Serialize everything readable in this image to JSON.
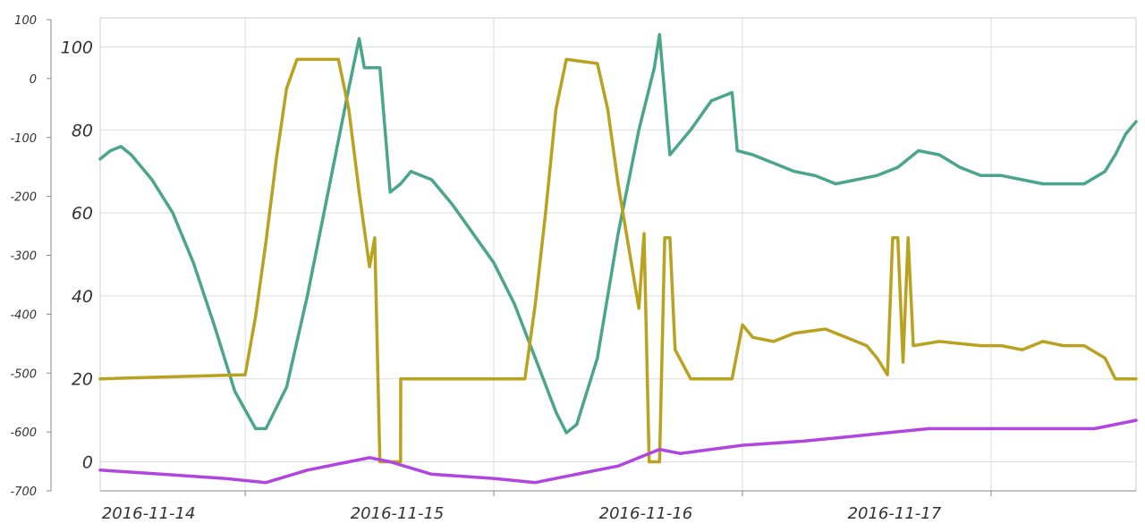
{
  "chart_data": {
    "type": "line",
    "title": "",
    "x_axis": {
      "type": "date",
      "min": "2016-11-13T10:00",
      "max": "2016-11-17T14:00",
      "ticks": [
        "2016-11-14",
        "2016-11-15",
        "2016-11-16",
        "2016-11-17"
      ],
      "tick_labels": [
        "2016-11-14",
        "2016-11-15",
        "2016-11-16",
        "2016-11-17"
      ]
    },
    "y_axis_left": {
      "min": -700,
      "max": 100,
      "ticks": [
        100,
        0,
        -100,
        -200,
        -300,
        -400,
        -500,
        -600,
        -700
      ],
      "tick_labels": [
        "100",
        "0",
        "-100",
        "-200",
        "-300",
        "-400",
        "-500",
        "-600",
        "-700"
      ]
    },
    "y_axis_inner": {
      "min": -7,
      "max": 107,
      "ticks": [
        100,
        80,
        60,
        40,
        20,
        0
      ],
      "tick_labels": [
        "100",
        "80",
        "60",
        "40",
        "20",
        "0"
      ]
    },
    "grid": true,
    "legend": "none",
    "series": [
      {
        "axis": "inner",
        "color": "#4aa58a",
        "points": [
          [
            "2016-11-13T10:00",
            73
          ],
          [
            "2016-11-13T11:00",
            75
          ],
          [
            "2016-11-13T12:00",
            76
          ],
          [
            "2016-11-13T13:00",
            74
          ],
          [
            "2016-11-13T15:00",
            68
          ],
          [
            "2016-11-13T17:00",
            60
          ],
          [
            "2016-11-13T19:00",
            48
          ],
          [
            "2016-11-13T21:00",
            33
          ],
          [
            "2016-11-13T23:00",
            17
          ],
          [
            "2016-11-14T01:00",
            8
          ],
          [
            "2016-11-14T02:00",
            8
          ],
          [
            "2016-11-14T04:00",
            18
          ],
          [
            "2016-11-14T06:00",
            40
          ],
          [
            "2016-11-14T08:00",
            65
          ],
          [
            "2016-11-14T10:00",
            90
          ],
          [
            "2016-11-14T11:00",
            102
          ],
          [
            "2016-11-14T11:30",
            95
          ],
          [
            "2016-11-14T13:00",
            95
          ],
          [
            "2016-11-14T14:00",
            65
          ],
          [
            "2016-11-14T15:00",
            67
          ],
          [
            "2016-11-14T16:00",
            70
          ],
          [
            "2016-11-14T18:00",
            68
          ],
          [
            "2016-11-14T20:00",
            62
          ],
          [
            "2016-11-14T22:00",
            55
          ],
          [
            "2016-11-15T00:00",
            48
          ],
          [
            "2016-11-15T02:00",
            38
          ],
          [
            "2016-11-15T04:00",
            25
          ],
          [
            "2016-11-15T06:00",
            12
          ],
          [
            "2016-11-15T07:00",
            7
          ],
          [
            "2016-11-15T08:00",
            9
          ],
          [
            "2016-11-15T10:00",
            25
          ],
          [
            "2016-11-15T12:00",
            55
          ],
          [
            "2016-11-15T14:00",
            80
          ],
          [
            "2016-11-15T15:30",
            95
          ],
          [
            "2016-11-15T16:00",
            103
          ],
          [
            "2016-11-15T17:00",
            74
          ],
          [
            "2016-11-15T19:00",
            80
          ],
          [
            "2016-11-15T21:00",
            87
          ],
          [
            "2016-11-15T23:00",
            89
          ],
          [
            "2016-11-15T23:30",
            75
          ],
          [
            "2016-11-16T01:00",
            74
          ],
          [
            "2016-11-16T03:00",
            72
          ],
          [
            "2016-11-16T05:00",
            70
          ],
          [
            "2016-11-16T07:00",
            69
          ],
          [
            "2016-11-16T09:00",
            67
          ],
          [
            "2016-11-16T11:00",
            68
          ],
          [
            "2016-11-16T13:00",
            69
          ],
          [
            "2016-11-16T15:00",
            71
          ],
          [
            "2016-11-16T17:00",
            75
          ],
          [
            "2016-11-16T19:00",
            74
          ],
          [
            "2016-11-16T21:00",
            71
          ],
          [
            "2016-11-16T23:00",
            69
          ],
          [
            "2016-11-17T01:00",
            69
          ],
          [
            "2016-11-17T03:00",
            68
          ],
          [
            "2016-11-17T05:00",
            67
          ],
          [
            "2016-11-17T07:00",
            67
          ],
          [
            "2016-11-17T09:00",
            67
          ],
          [
            "2016-11-17T11:00",
            70
          ],
          [
            "2016-11-17T12:00",
            74
          ],
          [
            "2016-11-17T13:00",
            79
          ],
          [
            "2016-11-17T14:00",
            82
          ]
        ]
      },
      {
        "axis": "inner",
        "color": "#b8a21f",
        "points": [
          [
            "2016-11-13T10:00",
            20
          ],
          [
            "2016-11-14T00:00",
            21
          ],
          [
            "2016-11-14T01:00",
            35
          ],
          [
            "2016-11-14T02:00",
            53
          ],
          [
            "2016-11-14T03:00",
            73
          ],
          [
            "2016-11-14T04:00",
            90
          ],
          [
            "2016-11-14T05:00",
            97
          ],
          [
            "2016-11-14T09:00",
            97
          ],
          [
            "2016-11-14T10:00",
            85
          ],
          [
            "2016-11-14T11:00",
            65
          ],
          [
            "2016-11-14T12:00",
            47
          ],
          [
            "2016-11-14T12:30",
            54
          ],
          [
            "2016-11-14T13:00",
            0
          ],
          [
            "2016-11-14T15:00",
            0
          ],
          [
            "2016-11-14T15:01",
            20
          ],
          [
            "2016-11-15T03:00",
            20
          ],
          [
            "2016-11-15T04:00",
            38
          ],
          [
            "2016-11-15T05:00",
            60
          ],
          [
            "2016-11-15T06:00",
            85
          ],
          [
            "2016-11-15T07:00",
            97
          ],
          [
            "2016-11-15T10:00",
            96
          ],
          [
            "2016-11-15T11:00",
            85
          ],
          [
            "2016-11-15T12:00",
            67
          ],
          [
            "2016-11-15T13:00",
            52
          ],
          [
            "2016-11-15T14:00",
            37
          ],
          [
            "2016-11-15T14:30",
            55
          ],
          [
            "2016-11-15T15:00",
            0
          ],
          [
            "2016-11-15T16:00",
            0
          ],
          [
            "2016-11-15T16:30",
            54
          ],
          [
            "2016-11-15T17:00",
            54
          ],
          [
            "2016-11-15T17:30",
            27
          ],
          [
            "2016-11-15T19:00",
            20
          ],
          [
            "2016-11-15T23:00",
            20
          ],
          [
            "2016-11-16T00:00",
            33
          ],
          [
            "2016-11-16T01:00",
            30
          ],
          [
            "2016-11-16T03:00",
            29
          ],
          [
            "2016-11-16T05:00",
            31
          ],
          [
            "2016-11-16T08:00",
            32
          ],
          [
            "2016-11-16T10:00",
            30
          ],
          [
            "2016-11-16T12:00",
            28
          ],
          [
            "2016-11-16T13:00",
            25
          ],
          [
            "2016-11-16T14:00",
            21
          ],
          [
            "2016-11-16T14:30",
            54
          ],
          [
            "2016-11-16T15:00",
            54
          ],
          [
            "2016-11-16T15:30",
            24
          ],
          [
            "2016-11-16T16:00",
            54
          ],
          [
            "2016-11-16T16:30",
            28
          ],
          [
            "2016-11-16T19:00",
            29
          ],
          [
            "2016-11-16T23:00",
            28
          ],
          [
            "2016-11-17T01:00",
            28
          ],
          [
            "2016-11-17T03:00",
            27
          ],
          [
            "2016-11-17T05:00",
            29
          ],
          [
            "2016-11-17T07:00",
            28
          ],
          [
            "2016-11-17T09:00",
            28
          ],
          [
            "2016-11-17T11:00",
            25
          ],
          [
            "2016-11-17T12:00",
            20
          ],
          [
            "2016-11-17T14:00",
            20
          ]
        ]
      },
      {
        "axis": "inner",
        "color": "#b145e0",
        "points": [
          [
            "2016-11-13T10:00",
            -2
          ],
          [
            "2016-11-13T16:00",
            -3
          ],
          [
            "2016-11-13T22:00",
            -4
          ],
          [
            "2016-11-14T02:00",
            -5
          ],
          [
            "2016-11-14T06:00",
            -2
          ],
          [
            "2016-11-14T10:00",
            0
          ],
          [
            "2016-11-14T12:00",
            1
          ],
          [
            "2016-11-14T14:00",
            0
          ],
          [
            "2016-11-14T18:00",
            -3
          ],
          [
            "2016-11-15T00:00",
            -4
          ],
          [
            "2016-11-15T04:00",
            -5
          ],
          [
            "2016-11-15T08:00",
            -3
          ],
          [
            "2016-11-15T12:00",
            -1
          ],
          [
            "2016-11-15T16:00",
            3
          ],
          [
            "2016-11-15T18:00",
            2
          ],
          [
            "2016-11-16T00:00",
            4
          ],
          [
            "2016-11-16T06:00",
            5
          ],
          [
            "2016-11-16T10:00",
            6
          ],
          [
            "2016-11-16T14:00",
            7
          ],
          [
            "2016-11-16T18:00",
            8
          ],
          [
            "2016-11-17T00:00",
            8
          ],
          [
            "2016-11-17T04:00",
            8
          ],
          [
            "2016-11-17T08:00",
            8
          ],
          [
            "2016-11-17T10:00",
            8
          ],
          [
            "2016-11-17T14:00",
            10
          ]
        ]
      }
    ]
  }
}
